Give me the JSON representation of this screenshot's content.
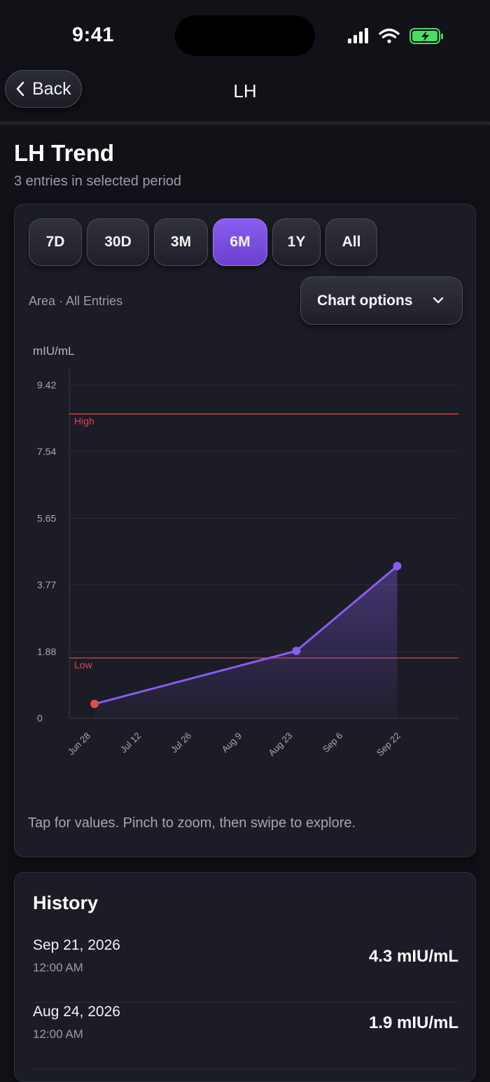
{
  "status_bar": {
    "time": "9:41",
    "icons": [
      "signal-icon",
      "wifi-icon",
      "battery-charging-icon"
    ],
    "battery_color": "#4cd964"
  },
  "nav": {
    "back_label": "Back",
    "title": "LH"
  },
  "page": {
    "title": "LH Trend",
    "subtitle": "3 entries in selected period"
  },
  "range_selector": {
    "options": [
      "7D",
      "30D",
      "3M",
      "6M",
      "1Y",
      "All"
    ],
    "selected": "6M"
  },
  "chart_meta": "Area · All Entries",
  "chart_options_label": "Chart options",
  "accent_color": "#8a5cf0",
  "chart_data": {
    "type": "area",
    "ylabel": "mIU/mL",
    "yticks": [
      "9.42",
      "7.54",
      "5.65",
      "3.77",
      "1.88",
      "0"
    ],
    "ylim": [
      0,
      9.42
    ],
    "xticks": [
      "Jun 28",
      "Jul 12",
      "Jul 26",
      "Aug 9",
      "Aug 23",
      "Sep 6",
      "Sep 22"
    ],
    "xlim": [
      "2026-06-22",
      "2026-10-08"
    ],
    "series": [
      {
        "points": [
          {
            "x": "2026-06-29",
            "y": 0.4,
            "status": "low"
          },
          {
            "x": "2026-08-24",
            "y": 1.9,
            "status": "normal"
          },
          {
            "x": "2026-09-21",
            "y": 4.3,
            "status": "normal"
          }
        ]
      }
    ],
    "reference_lines": [
      {
        "label": "High",
        "y": 8.6,
        "color": "#e0444e"
      },
      {
        "label": "Low",
        "y": 1.7,
        "color": "#e0444e"
      }
    ],
    "grid": true
  },
  "chart_hint": "Tap for values. Pinch to zoom, then swipe to explore.",
  "history": {
    "title": "History",
    "entries": [
      {
        "date": "Sep 21, 2026",
        "time": "12:00 AM",
        "value": "4.3 mIU/mL"
      },
      {
        "date": "Aug 24, 2026",
        "time": "12:00 AM",
        "value": "1.9 mIU/mL"
      }
    ]
  }
}
